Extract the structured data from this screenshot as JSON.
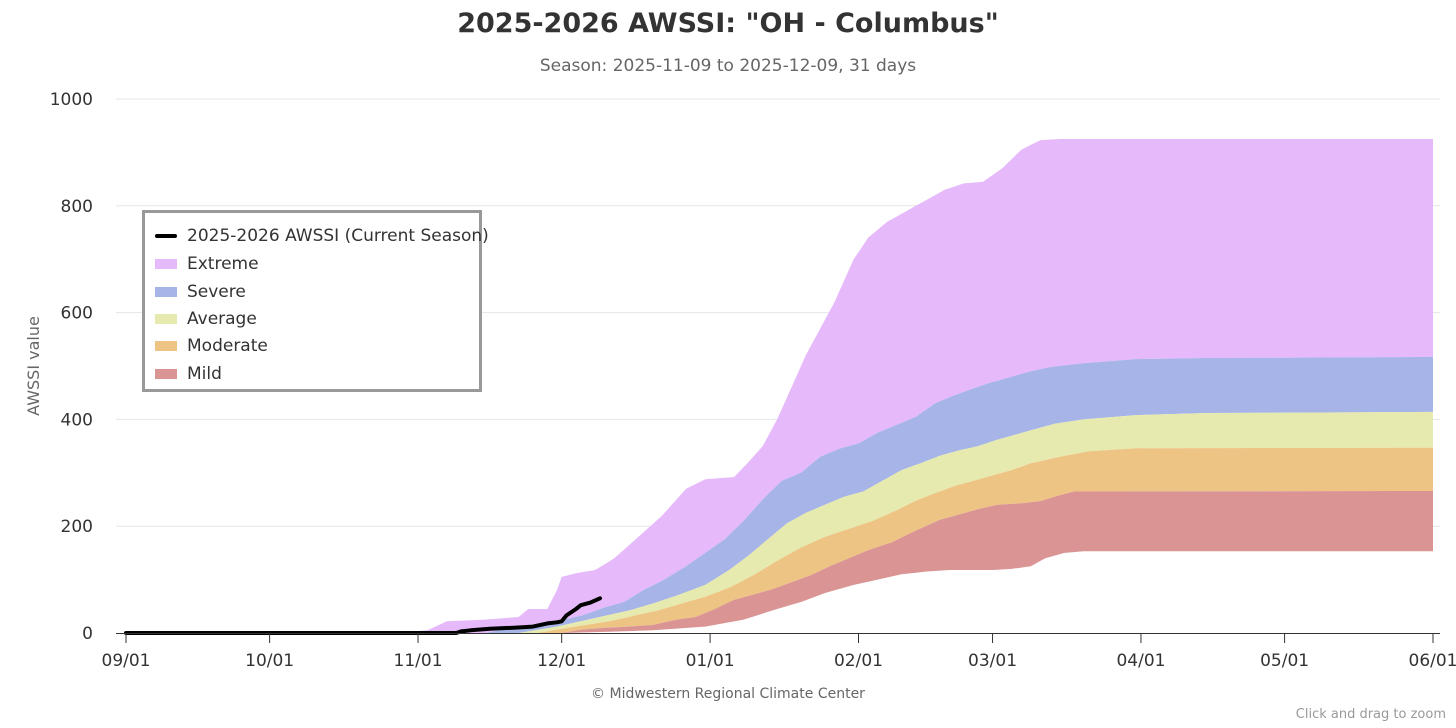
{
  "chart_data": {
    "type": "area",
    "title": "2025-2026 AWSSI: \"OH - Columbus\"",
    "subtitle": "Season: 2025-11-09 to 2025-12-09, 31 days",
    "ylabel": "AWSSI value",
    "xlabel": "",
    "ylim": [
      0,
      1000
    ],
    "yticks": [
      0,
      200,
      400,
      600,
      800,
      1000
    ],
    "xlim": [
      "2025-09-01",
      "2026-06-01"
    ],
    "xticks": [
      {
        "date": "2025-09-01",
        "label": "09/01"
      },
      {
        "date": "2025-10-01",
        "label": "10/01"
      },
      {
        "date": "2025-11-01",
        "label": "11/01"
      },
      {
        "date": "2025-12-01",
        "label": "12/01"
      },
      {
        "date": "2026-01-01",
        "label": "01/01"
      },
      {
        "date": "2026-02-01",
        "label": "02/01"
      },
      {
        "date": "2026-03-01",
        "label": "03/01"
      },
      {
        "date": "2026-04-01",
        "label": "04/01"
      },
      {
        "date": "2026-05-01",
        "label": "05/01"
      },
      {
        "date": "2026-06-01",
        "label": "06/01"
      }
    ],
    "grid": true,
    "legend_position": "left",
    "bands": [
      {
        "name": "Extreme",
        "color": "#e6b9fb",
        "points": [
          [
            "2025-10-27",
            0
          ],
          [
            "2025-11-03",
            5
          ],
          [
            "2025-11-07",
            22
          ],
          [
            "2025-11-15",
            25
          ],
          [
            "2025-11-22",
            30
          ],
          [
            "2025-11-24",
            45
          ],
          [
            "2025-11-28",
            45
          ],
          [
            "2025-11-30",
            80
          ],
          [
            "2025-12-01",
            105
          ],
          [
            "2025-12-04",
            112
          ],
          [
            "2025-12-08",
            118
          ],
          [
            "2025-12-12",
            140
          ],
          [
            "2025-12-17",
            180
          ],
          [
            "2025-12-22",
            220
          ],
          [
            "2025-12-27",
            270
          ],
          [
            "2025-12-31",
            288
          ],
          [
            "2026-01-06",
            292
          ],
          [
            "2026-01-09",
            320
          ],
          [
            "2026-01-12",
            350
          ],
          [
            "2026-01-15",
            400
          ],
          [
            "2026-01-18",
            460
          ],
          [
            "2026-01-21",
            520
          ],
          [
            "2026-01-24",
            570
          ],
          [
            "2026-01-27",
            620
          ],
          [
            "2026-01-31",
            700
          ],
          [
            "2026-02-03",
            740
          ],
          [
            "2026-02-07",
            770
          ],
          [
            "2026-02-11",
            790
          ],
          [
            "2026-02-15",
            810
          ],
          [
            "2026-02-19",
            830
          ],
          [
            "2026-02-23",
            842
          ],
          [
            "2026-02-27",
            845
          ],
          [
            "2026-03-03",
            870
          ],
          [
            "2026-03-07",
            905
          ],
          [
            "2026-03-11",
            923
          ],
          [
            "2026-03-15",
            925
          ],
          [
            "2026-06-01",
            925
          ]
        ]
      },
      {
        "name": "Severe",
        "color": "#a6b4e8",
        "points": [
          [
            "2025-11-15",
            0
          ],
          [
            "2025-11-22",
            12
          ],
          [
            "2025-11-30",
            22
          ],
          [
            "2025-12-05",
            32
          ],
          [
            "2025-12-10",
            48
          ],
          [
            "2025-12-14",
            58
          ],
          [
            "2025-12-18",
            80
          ],
          [
            "2025-12-22",
            98
          ],
          [
            "2025-12-27",
            125
          ],
          [
            "2025-12-31",
            150
          ],
          [
            "2026-01-04",
            175
          ],
          [
            "2026-01-08",
            210
          ],
          [
            "2026-01-12",
            250
          ],
          [
            "2026-01-16",
            285
          ],
          [
            "2026-01-20",
            300
          ],
          [
            "2026-01-24",
            330
          ],
          [
            "2026-01-28",
            345
          ],
          [
            "2026-02-01",
            355
          ],
          [
            "2026-02-05",
            375
          ],
          [
            "2026-02-09",
            390
          ],
          [
            "2026-02-13",
            405
          ],
          [
            "2026-02-17",
            430
          ],
          [
            "2026-02-21",
            445
          ],
          [
            "2026-02-25",
            458
          ],
          [
            "2026-03-01",
            470
          ],
          [
            "2026-03-05",
            480
          ],
          [
            "2026-03-09",
            490
          ],
          [
            "2026-03-13",
            498
          ],
          [
            "2026-03-20",
            505
          ],
          [
            "2026-03-31",
            513
          ],
          [
            "2026-04-15",
            515
          ],
          [
            "2026-06-01",
            517
          ]
        ]
      },
      {
        "name": "Average",
        "color": "#e6eaae",
        "points": [
          [
            "2025-11-22",
            0
          ],
          [
            "2025-11-30",
            12
          ],
          [
            "2025-12-05",
            22
          ],
          [
            "2025-12-10",
            32
          ],
          [
            "2025-12-15",
            42
          ],
          [
            "2025-12-20",
            55
          ],
          [
            "2025-12-25",
            70
          ],
          [
            "2025-12-31",
            90
          ],
          [
            "2026-01-05",
            118
          ],
          [
            "2026-01-09",
            145
          ],
          [
            "2026-01-13",
            175
          ],
          [
            "2026-01-17",
            205
          ],
          [
            "2026-01-21",
            225
          ],
          [
            "2026-01-25",
            240
          ],
          [
            "2026-01-29",
            255
          ],
          [
            "2026-02-02",
            265
          ],
          [
            "2026-02-06",
            285
          ],
          [
            "2026-02-10",
            305
          ],
          [
            "2026-02-14",
            318
          ],
          [
            "2026-02-18",
            332
          ],
          [
            "2026-02-22",
            342
          ],
          [
            "2026-02-26",
            350
          ],
          [
            "2026-03-02",
            362
          ],
          [
            "2026-03-06",
            372
          ],
          [
            "2026-03-10",
            382
          ],
          [
            "2026-03-14",
            392
          ],
          [
            "2026-03-20",
            400
          ],
          [
            "2026-03-31",
            408
          ],
          [
            "2026-04-15",
            412
          ],
          [
            "2026-06-01",
            414
          ]
        ]
      },
      {
        "name": "Moderate",
        "color": "#eec484",
        "points": [
          [
            "2025-11-26",
            0
          ],
          [
            "2025-12-01",
            8
          ],
          [
            "2025-12-06",
            15
          ],
          [
            "2025-12-11",
            22
          ],
          [
            "2025-12-16",
            32
          ],
          [
            "2025-12-21",
            42
          ],
          [
            "2025-12-26",
            55
          ],
          [
            "2025-12-31",
            68
          ],
          [
            "2026-01-05",
            85
          ],
          [
            "2026-01-10",
            108
          ],
          [
            "2026-01-15",
            135
          ],
          [
            "2026-01-20",
            160
          ],
          [
            "2026-01-25",
            180
          ],
          [
            "2026-01-30",
            195
          ],
          [
            "2026-02-04",
            210
          ],
          [
            "2026-02-09",
            230
          ],
          [
            "2026-02-13",
            248
          ],
          [
            "2026-02-17",
            262
          ],
          [
            "2026-02-21",
            275
          ],
          [
            "2026-02-25",
            285
          ],
          [
            "2026-03-01",
            295
          ],
          [
            "2026-03-05",
            305
          ],
          [
            "2026-03-09",
            318
          ],
          [
            "2026-03-15",
            330
          ],
          [
            "2026-03-21",
            340
          ],
          [
            "2026-03-31",
            346
          ],
          [
            "2026-06-01",
            347
          ]
        ]
      },
      {
        "name": "Mild",
        "color": "#da9494",
        "points": [
          [
            "2025-12-01",
            0
          ],
          [
            "2025-12-05",
            6
          ],
          [
            "2025-12-10",
            10
          ],
          [
            "2025-12-15",
            12
          ],
          [
            "2025-12-20",
            15
          ],
          [
            "2025-12-25",
            25
          ],
          [
            "2025-12-29",
            30
          ],
          [
            "2026-01-02",
            45
          ],
          [
            "2026-01-06",
            62
          ],
          [
            "2026-01-10",
            72
          ],
          [
            "2026-01-14",
            82
          ],
          [
            "2026-01-18",
            95
          ],
          [
            "2026-01-22",
            108
          ],
          [
            "2026-01-26",
            125
          ],
          [
            "2026-01-30",
            140
          ],
          [
            "2026-02-03",
            155
          ],
          [
            "2026-02-08",
            170
          ],
          [
            "2026-02-13",
            192
          ],
          [
            "2026-02-18",
            212
          ],
          [
            "2026-02-22",
            222
          ],
          [
            "2026-02-26",
            232
          ],
          [
            "2026-03-02",
            240
          ],
          [
            "2026-03-07",
            243
          ],
          [
            "2026-03-11",
            247
          ],
          [
            "2026-03-15",
            258
          ],
          [
            "2026-03-18",
            265
          ],
          [
            "2026-06-01",
            266
          ]
        ],
        "bottom": [
          [
            "2025-12-01",
            0
          ],
          [
            "2025-12-10",
            2
          ],
          [
            "2025-12-20",
            5
          ],
          [
            "2025-12-31",
            12
          ],
          [
            "2026-01-08",
            25
          ],
          [
            "2026-01-15",
            45
          ],
          [
            "2026-01-20",
            58
          ],
          [
            "2026-01-25",
            75
          ],
          [
            "2026-01-31",
            90
          ],
          [
            "2026-02-05",
            100
          ],
          [
            "2026-02-10",
            110
          ],
          [
            "2026-02-15",
            115
          ],
          [
            "2026-02-20",
            118
          ],
          [
            "2026-03-01",
            118
          ],
          [
            "2026-03-05",
            120
          ],
          [
            "2026-03-09",
            125
          ],
          [
            "2026-03-12",
            140
          ],
          [
            "2026-03-16",
            150
          ],
          [
            "2026-03-20",
            153
          ],
          [
            "2026-06-01",
            153
          ]
        ]
      }
    ],
    "series": [
      {
        "name": "2025-2026 AWSSI (Current Season)",
        "color": "#000000",
        "points": [
          [
            "2025-09-01",
            0
          ],
          [
            "2025-11-09",
            0
          ],
          [
            "2025-11-10",
            3
          ],
          [
            "2025-11-12",
            5
          ],
          [
            "2025-11-16",
            8
          ],
          [
            "2025-11-21",
            10
          ],
          [
            "2025-11-25",
            12
          ],
          [
            "2025-11-28",
            18
          ],
          [
            "2025-11-30",
            20
          ],
          [
            "2025-12-01",
            22
          ],
          [
            "2025-12-02",
            33
          ],
          [
            "2025-12-04",
            45
          ],
          [
            "2025-12-05",
            52
          ],
          [
            "2025-12-07",
            57
          ],
          [
            "2025-12-09",
            65
          ]
        ]
      }
    ],
    "credits": "© Midwestern Regional Climate Center",
    "zoom_hint": "Click and drag to zoom"
  }
}
